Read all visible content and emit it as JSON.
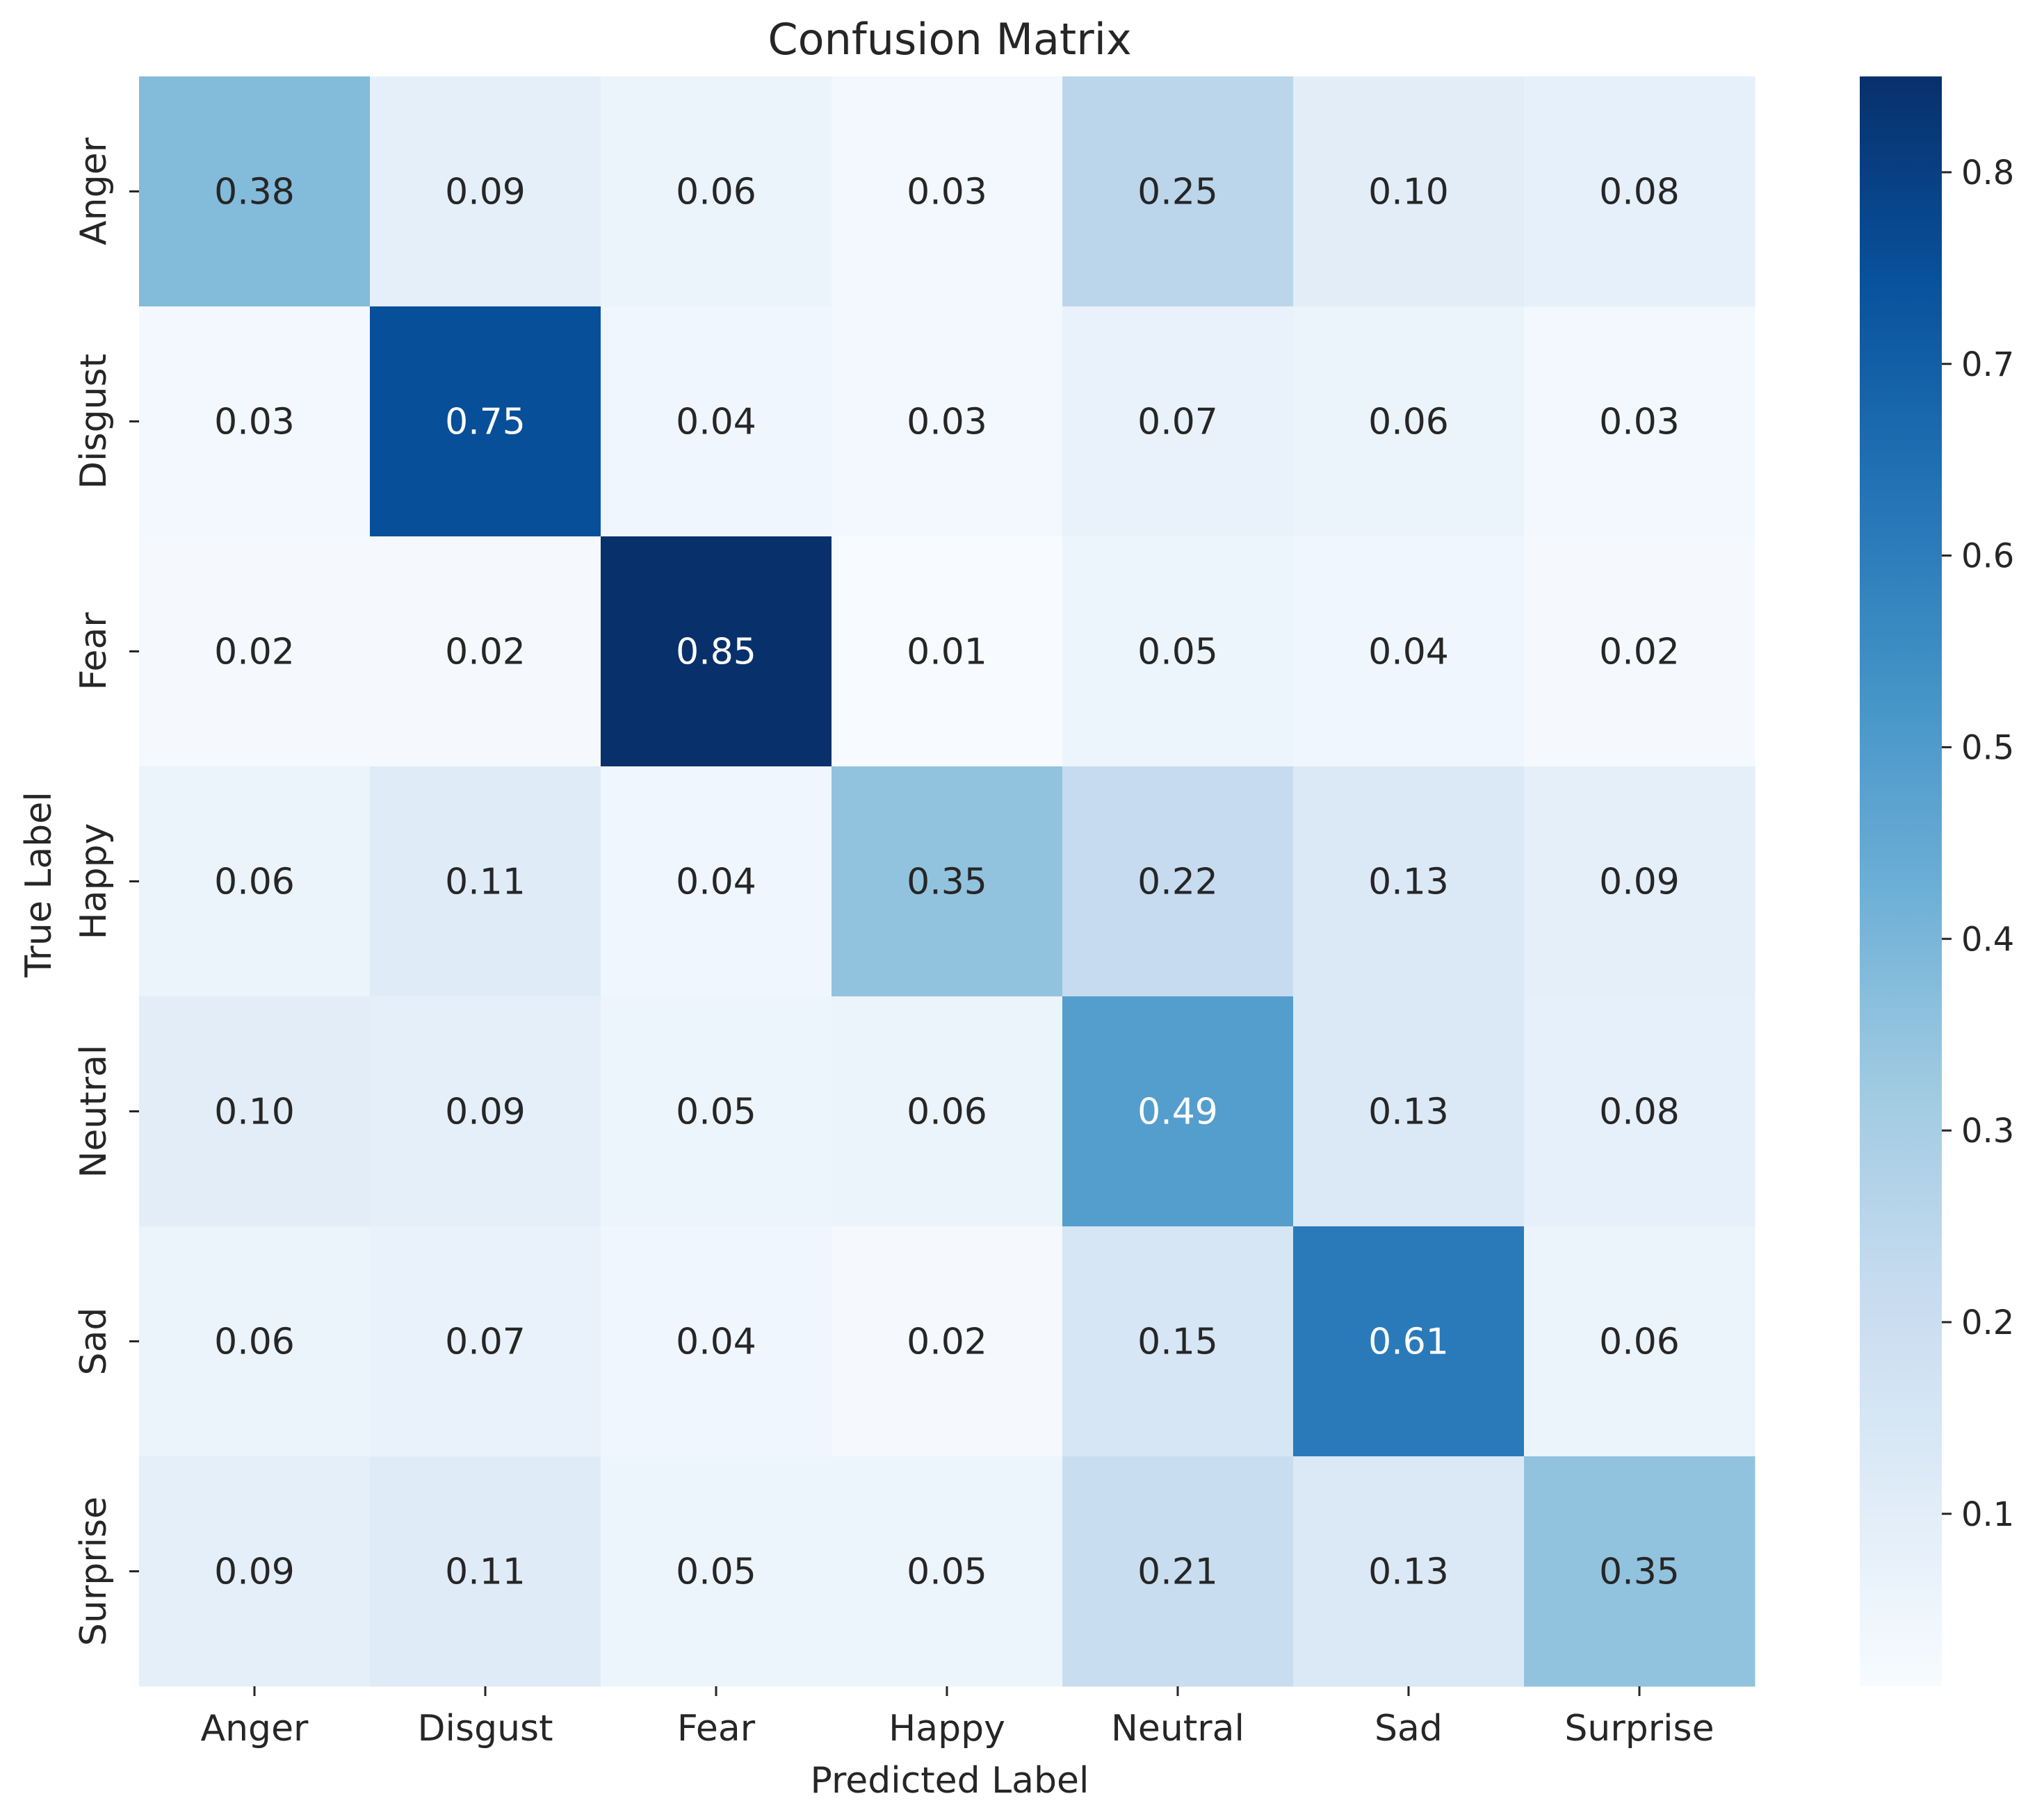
{
  "chart_data": {
    "type": "heatmap",
    "title": "Confusion Matrix",
    "xlabel": "Predicted Label",
    "ylabel": "True Label",
    "x_categories": [
      "Anger",
      "Disgust",
      "Fear",
      "Happy",
      "Neutral",
      "Sad",
      "Surprise"
    ],
    "y_categories": [
      "Anger",
      "Disgust",
      "Fear",
      "Happy",
      "Neutral",
      "Sad",
      "Surprise"
    ],
    "values": [
      [
        0.38,
        0.09,
        0.06,
        0.03,
        0.25,
        0.1,
        0.08
      ],
      [
        0.03,
        0.75,
        0.04,
        0.03,
        0.07,
        0.06,
        0.03
      ],
      [
        0.02,
        0.02,
        0.85,
        0.01,
        0.05,
        0.04,
        0.02
      ],
      [
        0.06,
        0.11,
        0.04,
        0.35,
        0.22,
        0.13,
        0.09
      ],
      [
        0.1,
        0.09,
        0.05,
        0.06,
        0.49,
        0.13,
        0.08
      ],
      [
        0.06,
        0.07,
        0.04,
        0.02,
        0.15,
        0.61,
        0.06
      ],
      [
        0.09,
        0.11,
        0.05,
        0.05,
        0.21,
        0.13,
        0.35
      ]
    ],
    "value_format": "0.00",
    "colormap": "Blues",
    "colorbar": {
      "range": [
        0.01,
        0.85
      ],
      "ticks": [
        0.1,
        0.2,
        0.3,
        0.4,
        0.5,
        0.6,
        0.7,
        0.8
      ],
      "tick_labels": [
        "0.1",
        "0.2",
        "0.3",
        "0.4",
        "0.5",
        "0.6",
        "0.7",
        "0.8"
      ]
    }
  }
}
